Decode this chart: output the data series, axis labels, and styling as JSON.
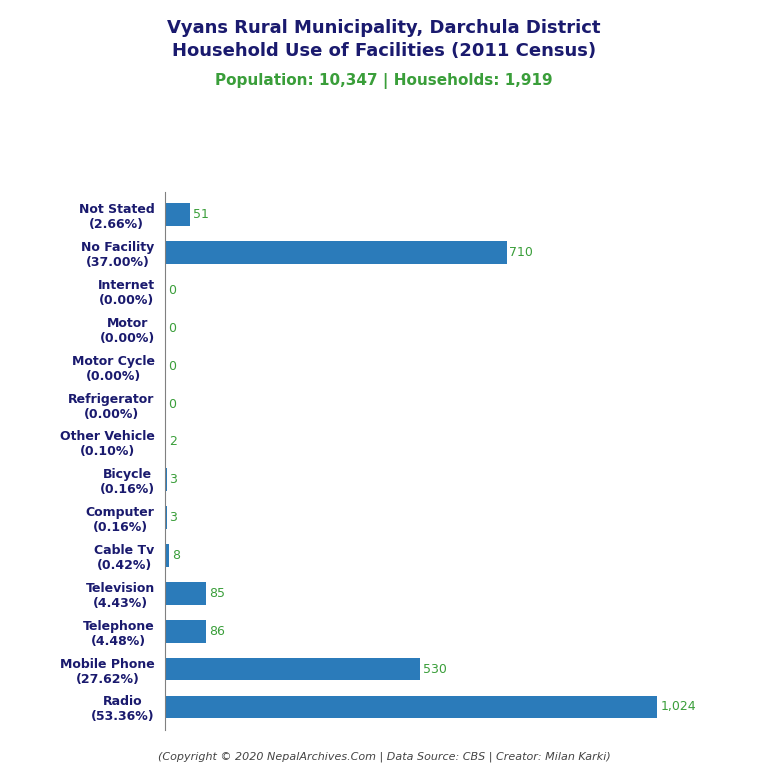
{
  "title_line1": "Vyans Rural Municipality, Darchula District",
  "title_line2": "Household Use of Facilities (2011 Census)",
  "subtitle": "Population: 10,347 | Households: 1,919",
  "footer": "(Copyright © 2020 NepalArchives.Com | Data Source: CBS | Creator: Milan Karki)",
  "categories": [
    "Not Stated\n(2.66%)",
    "No Facility\n(37.00%)",
    "Internet\n(0.00%)",
    "Motor\n(0.00%)",
    "Motor Cycle\n(0.00%)",
    "Refrigerator\n(0.00%)",
    "Other Vehicle\n(0.10%)",
    "Bicycle\n(0.16%)",
    "Computer\n(0.16%)",
    "Cable Tv\n(0.42%)",
    "Television\n(4.43%)",
    "Telephone\n(4.48%)",
    "Mobile Phone\n(27.62%)",
    "Radio\n(53.36%)"
  ],
  "values": [
    51,
    710,
    0,
    0,
    0,
    0,
    2,
    3,
    3,
    8,
    85,
    86,
    530,
    1024
  ],
  "bar_color": "#2b7bba",
  "value_color": "#3a9e3a",
  "title_color": "#1a1a6e",
  "subtitle_color": "#3a9e3a",
  "footer_color": "#444444",
  "background_color": "#ffffff",
  "xlim": [
    0,
    1150
  ],
  "title_fontsize": 13,
  "subtitle_fontsize": 11,
  "ylabel_fontsize": 9,
  "value_fontsize": 9,
  "footer_fontsize": 8
}
